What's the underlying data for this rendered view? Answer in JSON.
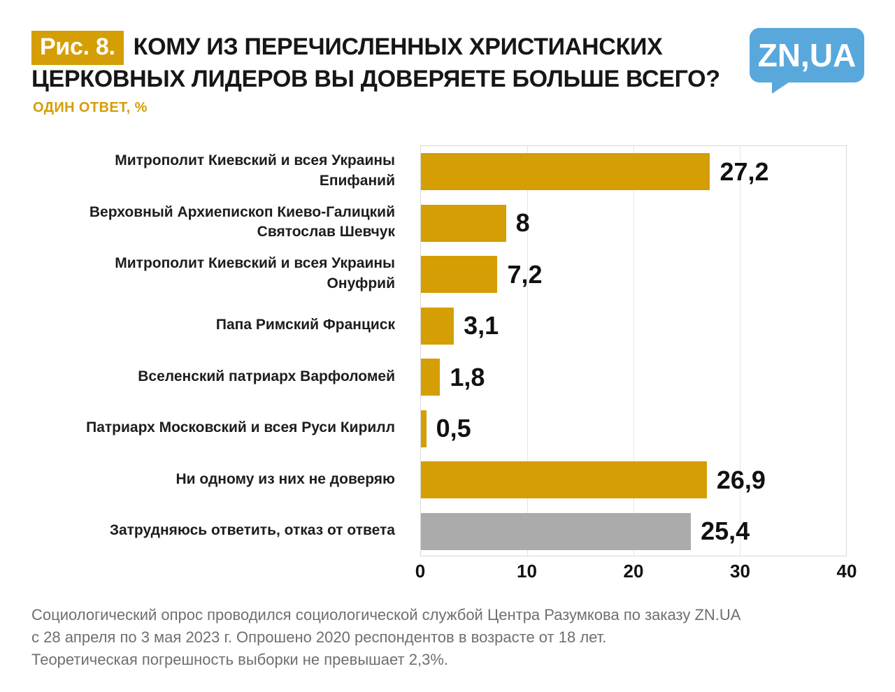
{
  "header": {
    "figure_label": "Рис. 8.",
    "title": "КОМУ ИЗ ПЕРЕЧИСЛЕННЫХ ХРИСТИАНСКИХ ЦЕРКОВНЫХ ЛИДЕРОВ ВЫ ДОВЕРЯЕТЕ БОЛЬШЕ ВСЕГО?",
    "subtitle": "ОДИН ОТВЕТ, %"
  },
  "logo": {
    "text": "ZN,UA"
  },
  "chart_data": {
    "type": "bar",
    "orientation": "horizontal",
    "title": "КОМУ ИЗ ПЕРЕЧИСЛЕННЫХ ХРИСТИАНСКИХ ЦЕРКОВНЫХ ЛИДЕРОВ ВЫ ДОВЕРЯЕТЕ БОЛЬШЕ ВСЕГО?",
    "subtitle": "ОДИН ОТВЕТ, %",
    "categories": [
      "Митрополит Киевский и всея Украины\nЕпифаний",
      "Верховный Архиепископ Киево-Галицкий\nСвятослав Шевчук",
      "Митрополит Киевский и всея Украины\nОнуфрий",
      "Папа Римский Франциск",
      "Вселенский патриарх Варфоломей",
      "Патриарх Московский и всея Руси Кирилл",
      "Ни одному из них не доверяю",
      "Затрудняюсь ответить, отказ от ответа"
    ],
    "values": [
      27.2,
      8,
      7.2,
      3.1,
      1.8,
      0.5,
      26.9,
      25.4
    ],
    "value_labels": [
      "27,2",
      "8",
      "7,2",
      "3,1",
      "1,8",
      "0,5",
      "26,9",
      "25,4"
    ],
    "bar_colors": [
      "#D49E04",
      "#D49E04",
      "#D49E04",
      "#D49E04",
      "#D49E04",
      "#D49E04",
      "#D49E04",
      "#ABABAB"
    ],
    "xlim": [
      0,
      40
    ],
    "x_ticks": [
      "0",
      "10",
      "20",
      "30",
      "40"
    ],
    "grid": true,
    "legend": false,
    "unit": "%"
  },
  "footnote": {
    "lines": [
      "Социологический опрос проводился социологической службой Центра Разумкова по заказу ZN.UA",
      "с 28 апреля по 3 мая 2023 г. Опрошено 2020 респондентов в возрасте от 18 лет.",
      "Теоретическая погрешность выборки не превышает 2,3%."
    ]
  },
  "colors": {
    "accent_gold": "#D49E04",
    "bar_gray": "#ABABAB",
    "logo_blue": "#58A8DC",
    "text_dark": "#161616",
    "footnote_gray": "#6F6F6F",
    "grid": "#E4E4E4"
  }
}
